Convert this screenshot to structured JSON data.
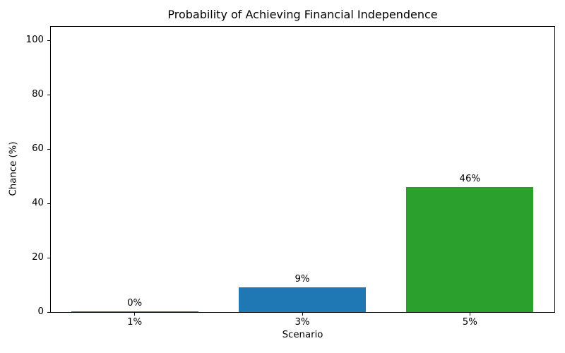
{
  "chart_data": {
    "type": "bar",
    "title": "Probability of Achieving Financial Independence",
    "xlabel": "Scenario",
    "ylabel": "Chance (%)",
    "categories": [
      "1%",
      "3%",
      "5%"
    ],
    "values": [
      0.3,
      9,
      46
    ],
    "bar_labels": [
      "0%",
      "9%",
      "46%"
    ],
    "bar_colors": [
      "#1f77b4",
      "#1f77b4",
      "#2ca02c"
    ],
    "ylim": [
      0,
      105
    ],
    "yticks": [
      0,
      20,
      40,
      60,
      80,
      100
    ],
    "grid": false,
    "legend_position": "none",
    "background_color": "#ffffff",
    "text_color": "#000000"
  }
}
